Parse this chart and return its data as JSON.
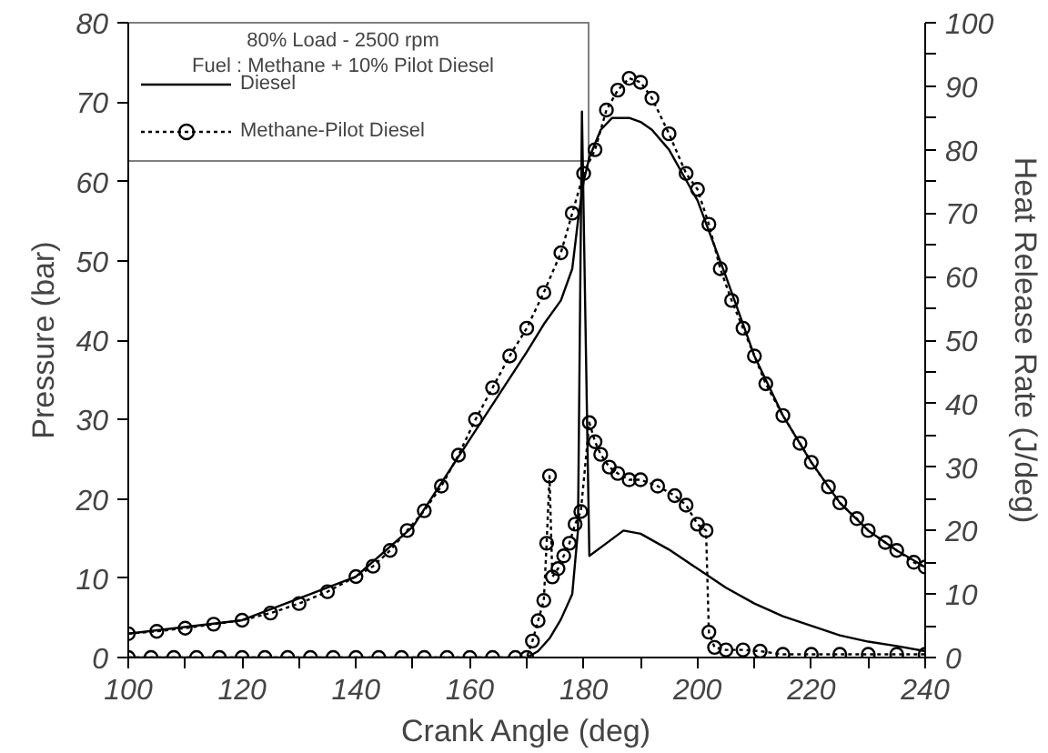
{
  "chart_data": {
    "type": "line",
    "xlabel": "Crank Angle (deg)",
    "ylabel": "Pressure (bar)",
    "y2label": "Heat Release Rate (J/deg)",
    "annotations": [
      "80% Load - 2500 rpm",
      "Fuel : Methane + 10% Pilot Diesel"
    ],
    "xlim": [
      100,
      240
    ],
    "xticks": [
      100,
      {
        "value": 110,
        "label": null
      },
      120,
      {
        "value": 130,
        "label": null
      },
      140,
      {
        "value": 150,
        "label": null
      },
      160,
      {
        "value": 170,
        "label": null
      },
      180,
      {
        "value": 190,
        "label": null
      },
      200,
      {
        "value": 210,
        "label": null
      },
      220,
      {
        "value": 230,
        "label": null
      },
      240
    ],
    "ylim": [
      0,
      80
    ],
    "yticks": [
      0,
      10,
      20,
      30,
      40,
      50,
      60,
      70,
      80
    ],
    "y2lim": [
      0,
      100
    ],
    "y2ticks": [
      0,
      {
        "value": 5,
        "label": null
      },
      10,
      {
        "value": 15,
        "label": null
      },
      20,
      {
        "value": 25,
        "label": null
      },
      30,
      {
        "value": 35,
        "label": null
      },
      40,
      {
        "value": 45,
        "label": null
      },
      50,
      {
        "value": 55,
        "label": null
      },
      60,
      {
        "value": 65,
        "label": null
      },
      70,
      {
        "value": 75,
        "label": null
      },
      80,
      {
        "value": 85,
        "label": null
      },
      90,
      {
        "value": 95,
        "label": null
      },
      100
    ],
    "grid": false,
    "legend": "top left",
    "series": [
      {
        "name": "Diesel",
        "color": "#000000",
        "marker": "none",
        "line_style": "solid",
        "x": [
          100,
          120,
          140,
          150,
          160,
          165,
          170,
          173,
          176,
          178,
          179,
          180,
          181,
          183,
          185,
          188,
          190,
          192,
          195,
          200,
          205,
          210,
          215,
          220,
          225,
          230,
          235,
          240
        ],
        "values": [
          3.0,
          4.7,
          10.2,
          16.5,
          27.5,
          33,
          38.5,
          42,
          45,
          49,
          55,
          60,
          63,
          66.5,
          68,
          68,
          67.5,
          66.5,
          64,
          57.6,
          48,
          38,
          30.5,
          24.6,
          19.5,
          16,
          13.5,
          11.4
        ]
      },
      {
        "name": "Methane-Pilot Diesel",
        "color": "#000000",
        "marker": "circle",
        "line_style": "dotted",
        "x": [
          100,
          105,
          110,
          115,
          120,
          125,
          130,
          135,
          140,
          143,
          146,
          149,
          152,
          155,
          158,
          161,
          164,
          167,
          170,
          173,
          176,
          178,
          180,
          182,
          184,
          186,
          188,
          190,
          192,
          195,
          198,
          200,
          202,
          204,
          206,
          208,
          210,
          212,
          215,
          218,
          220,
          223,
          225,
          228,
          230,
          233,
          235,
          238,
          240
        ],
        "values": [
          3.0,
          3.3,
          3.7,
          4.2,
          4.7,
          5.6,
          6.8,
          8.3,
          10.2,
          11.5,
          13.5,
          16,
          18.5,
          21.6,
          25.5,
          30,
          34,
          38,
          41.5,
          46,
          51,
          56,
          61,
          64,
          69,
          71.5,
          73,
          72.5,
          70.5,
          66,
          61,
          59,
          54.6,
          49,
          45,
          41.5,
          38,
          34.5,
          30.5,
          27,
          24.6,
          21.5,
          19.5,
          17.5,
          16,
          14.5,
          13.5,
          12,
          11.4
        ]
      },
      {
        "color": "#000000",
        "marker": "none",
        "line_style": "solid",
        "axis": "y2",
        "x": [
          100,
          170,
          172,
          174,
          176,
          178,
          179,
          179.7,
          181,
          184,
          187,
          190,
          195,
          200,
          205,
          210,
          215,
          220,
          225,
          230,
          235,
          240
        ],
        "values": [
          0,
          0,
          1,
          3,
          6,
          10,
          20,
          86,
          16,
          18,
          20,
          19.5,
          17,
          14,
          11,
          8.5,
          6.5,
          5,
          3.5,
          2.5,
          1.8,
          1
        ]
      },
      {
        "color": "#000000",
        "marker": "circle",
        "line_style": "dotted",
        "axis": "y2",
        "x": [
          100,
          104,
          108,
          112,
          116,
          120,
          124,
          128,
          132,
          136,
          140,
          144,
          148,
          152,
          156,
          160,
          164,
          168,
          170,
          171,
          172,
          173,
          173.5,
          174,
          174.5,
          175.5,
          176.5,
          177.5,
          178.5,
          179.5,
          181,
          182,
          183,
          184.5,
          186,
          188,
          190,
          193,
          196,
          198,
          200,
          201.5,
          202,
          203,
          205,
          208,
          211,
          215,
          220,
          225,
          230,
          235,
          240
        ],
        "values": [
          0,
          0,
          0,
          0,
          0,
          0,
          0,
          0,
          0,
          0,
          0,
          0,
          0,
          0,
          0,
          0,
          0,
          0,
          0,
          2.6,
          5.8,
          9,
          18,
          28.6,
          12.7,
          14,
          16,
          18,
          21,
          23,
          37,
          34,
          32,
          30,
          29,
          28,
          28,
          27,
          25.5,
          24,
          21,
          20,
          4,
          1.6,
          1.2,
          1.2,
          1,
          0.5,
          0.5,
          0.5,
          0.5,
          0.5,
          0.5
        ]
      }
    ]
  }
}
